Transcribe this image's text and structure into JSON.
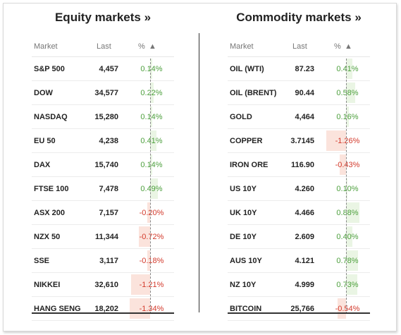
{
  "equity": {
    "title": "Equity markets »",
    "headers": {
      "market": "Market",
      "last": "Last",
      "pct": "%",
      "sort_arrow": "▲"
    },
    "rows": [
      {
        "market": "S&P 500",
        "last": "4,457",
        "pct": "0.14%",
        "change": 0.14
      },
      {
        "market": "DOW",
        "last": "34,577",
        "pct": "0.22%",
        "change": 0.22
      },
      {
        "market": "NASDAQ",
        "last": "15,280",
        "pct": "0.14%",
        "change": 0.14
      },
      {
        "market": "EU 50",
        "last": "4,238",
        "pct": "0.41%",
        "change": 0.41
      },
      {
        "market": "DAX",
        "last": "15,740",
        "pct": "0.14%",
        "change": 0.14
      },
      {
        "market": "FTSE 100",
        "last": "7,478",
        "pct": "0.49%",
        "change": 0.49
      },
      {
        "market": "ASX 200",
        "last": "7,157",
        "pct": "-0.20%",
        "change": -0.2
      },
      {
        "market": "NZX 50",
        "last": "11,344",
        "pct": "-0.72%",
        "change": -0.72
      },
      {
        "market": "SSE",
        "last": "3,117",
        "pct": "-0.18%",
        "change": -0.18
      },
      {
        "market": "NIKKEI",
        "last": "32,610",
        "pct": "-1.21%",
        "change": -1.21
      },
      {
        "market": "HANG SENG",
        "last": "18,202",
        "pct": "-1.34%",
        "change": -1.34
      }
    ]
  },
  "commodity": {
    "title": "Commodity markets »",
    "headers": {
      "market": "Market",
      "last": "Last",
      "pct": "%",
      "sort_arrow": "▲"
    },
    "rows": [
      {
        "market": "OIL (WTI)",
        "last": "87.23",
        "pct": "0.41%",
        "change": 0.41
      },
      {
        "market": "OIL (BRENT)",
        "last": "90.44",
        "pct": "0.58%",
        "change": 0.58
      },
      {
        "market": "GOLD",
        "last": "4,464",
        "pct": "0.16%",
        "change": 0.16
      },
      {
        "market": "COPPER",
        "last": "3.7145",
        "pct": "-1.26%",
        "change": -1.26
      },
      {
        "market": "IRON ORE",
        "last": "116.90",
        "pct": "-0.43%",
        "change": -0.43
      },
      {
        "market": "US 10Y",
        "last": "4.260",
        "pct": "0.10%",
        "change": 0.1
      },
      {
        "market": "UK 10Y",
        "last": "4.466",
        "pct": "0.88%",
        "change": 0.88
      },
      {
        "market": "DE 10Y",
        "last": "2.609",
        "pct": "0.40%",
        "change": 0.4
      },
      {
        "market": "AUS 10Y",
        "last": "4.121",
        "pct": "0.78%",
        "change": 0.78
      },
      {
        "market": "NZ 10Y",
        "last": "4.999",
        "pct": "0.73%",
        "change": 0.73
      },
      {
        "market": "BITCOIN",
        "last": "25,766",
        "pct": "-0.54%",
        "change": -0.54
      }
    ]
  },
  "colors": {
    "positive_text": "#4c9f3c",
    "negative_text": "#d33a2c",
    "positive_bar": "#eaf5e4",
    "negative_bar": "#fbe3dc"
  }
}
